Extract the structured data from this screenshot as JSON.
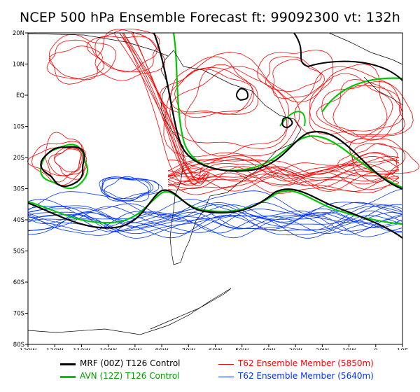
{
  "title": "NCEP 500 hPa Ensemble Forecast  ft: 99092300 vt: 132h",
  "lat_labels": [
    "20N",
    "10N",
    "EQ",
    "10S",
    "20S",
    "30S",
    "40S",
    "50S",
    "60S",
    "70S",
    "80S"
  ],
  "lon_labels": [
    "130W",
    "120W",
    "110W",
    "100W",
    "90W",
    "80W",
    "70W",
    "60W",
    "50W",
    "40W",
    "30W",
    "20W",
    "10W",
    "0",
    "10E"
  ],
  "colors": {
    "mrf": "#000000",
    "avn": "#00c800",
    "red_member": "#ff0000",
    "blue_member": "#0033ff",
    "coast": "#000000"
  },
  "legend": [
    {
      "label": "MRF (00Z) T126 Control",
      "color": "#000000"
    },
    {
      "label": "AVN (12Z) T126 Control",
      "color": "#00c800"
    },
    {
      "label": "T62 Ensemble Member (5850m)",
      "color": "#ff0000"
    },
    {
      "label": "T62 Ensemble Member (5640m)",
      "color": "#0033ff"
    }
  ]
}
